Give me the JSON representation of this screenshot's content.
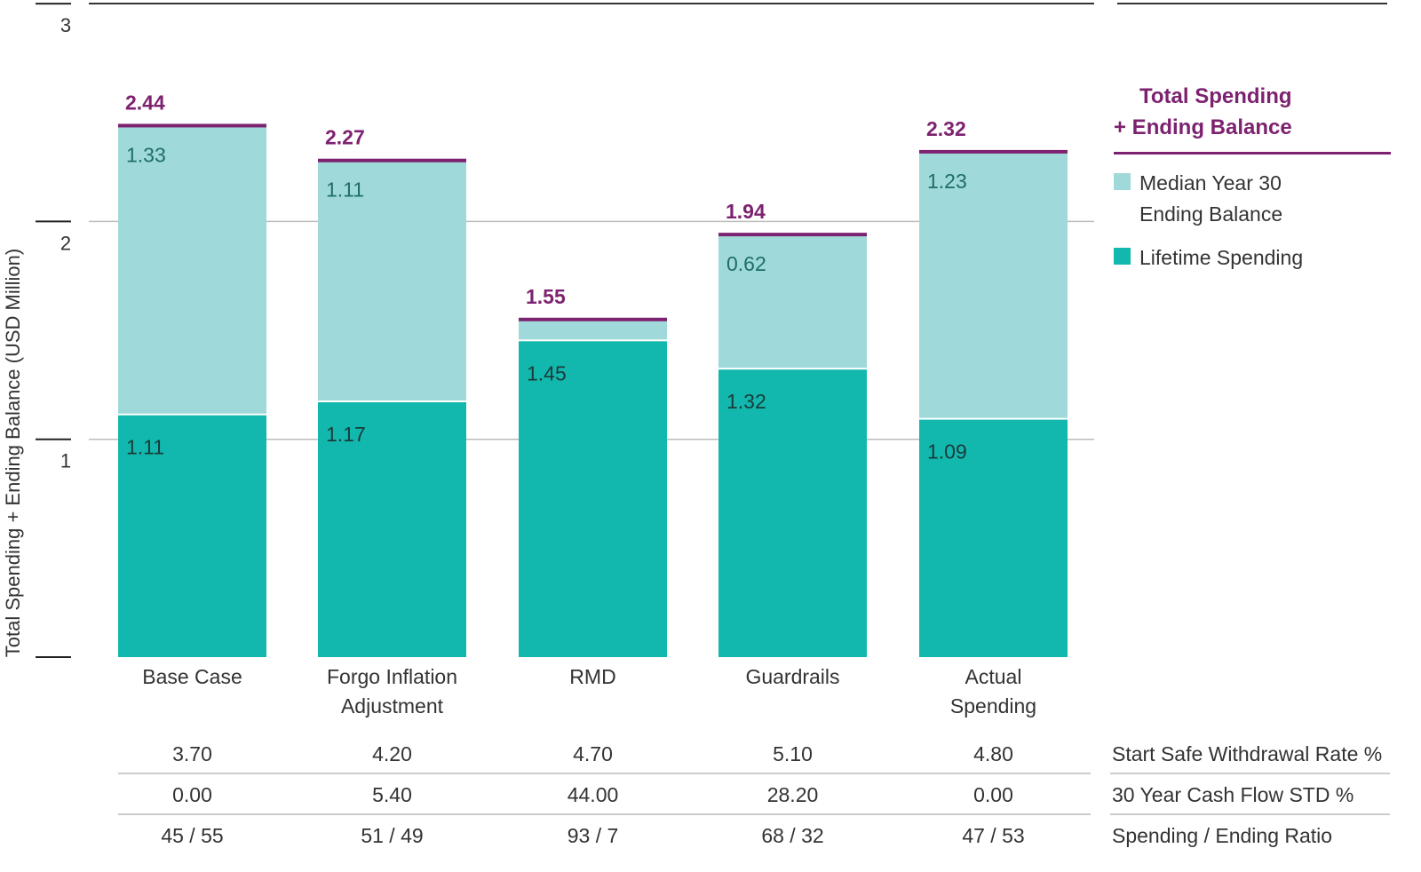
{
  "chart_data": {
    "type": "bar",
    "stacked": true,
    "ylabel": "Total Spending + Ending Balance (USD Million)",
    "ylim": [
      0,
      3
    ],
    "yticks": [
      "1",
      "2",
      "3"
    ],
    "grid": true,
    "legend_position": "right",
    "categories": [
      [
        "Base Case"
      ],
      [
        "Forgo Inflation",
        "Adjustment"
      ],
      [
        "RMD"
      ],
      [
        "Guardrails"
      ],
      [
        "Actual",
        "Spending"
      ]
    ],
    "series": [
      {
        "name": "Lifetime Spending",
        "color": "#12b8ad",
        "values": [
          1.11,
          1.17,
          1.45,
          1.32,
          1.09
        ],
        "labels": [
          "1.11",
          "1.17",
          "1.45",
          "1.32",
          "1.09"
        ]
      },
      {
        "name": "Median Year 30 Ending Balance",
        "color": "#a0d9d9",
        "values": [
          1.33,
          1.11,
          0.1,
          0.62,
          1.23
        ],
        "labels": [
          "1.33",
          "1.11",
          "",
          "0.62",
          "1.23"
        ]
      }
    ],
    "totals": {
      "name": [
        "Total Spending",
        "+ Ending Balance"
      ],
      "color": "#7d2270",
      "values": [
        2.44,
        2.27,
        1.55,
        1.94,
        2.32
      ],
      "labels": [
        "2.44",
        "2.27",
        "1.55",
        "1.94",
        "2.32"
      ]
    },
    "table": {
      "rows": [
        {
          "label": "Start Safe Withdrawal Rate %",
          "values": [
            "3.70",
            "4.20",
            "4.70",
            "5.10",
            "4.80"
          ]
        },
        {
          "label": "30 Year Cash Flow STD %",
          "values": [
            "0.00",
            "5.40",
            "44.00",
            "28.20",
            "0.00"
          ]
        },
        {
          "label": "Spending / Ending Ratio",
          "values": [
            "45 / 55",
            "51 / 49",
            "93 / 7",
            "68 / 32",
            "47 / 53"
          ]
        }
      ]
    }
  }
}
